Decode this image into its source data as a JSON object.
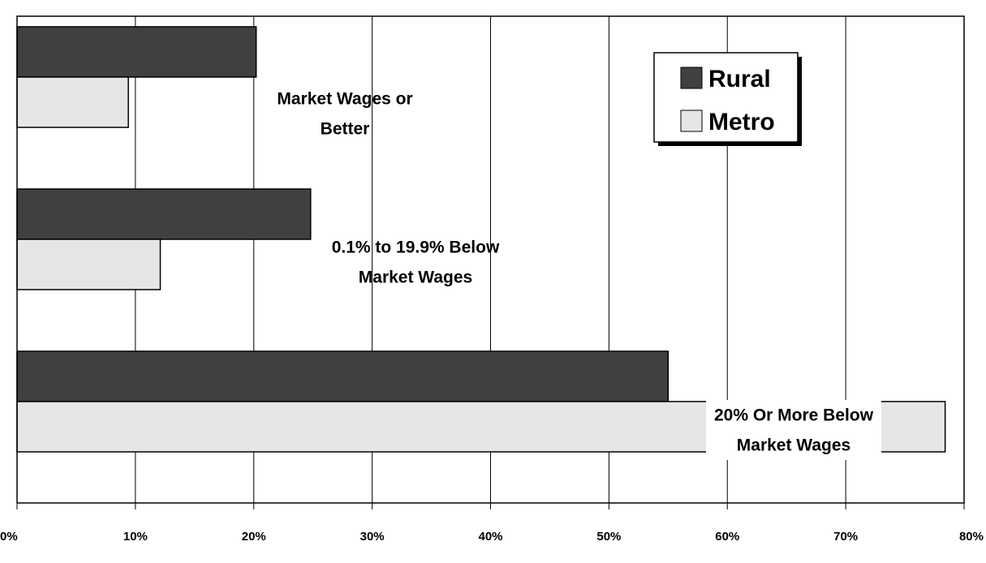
{
  "chart_data": {
    "type": "bar",
    "orientation": "horizontal",
    "categories": [
      "Market Wages or Better",
      "0.1% to 19.9% Below Market Wages",
      "20% Or More Below Market Wages"
    ],
    "series": [
      {
        "name": "Rural",
        "values": [
          20.2,
          24.8,
          55.0
        ],
        "color": "#404040"
      },
      {
        "name": "Metro",
        "values": [
          9.4,
          12.1,
          78.4
        ],
        "color": "#e6e6e6"
      }
    ],
    "xlim": [
      0,
      80
    ],
    "x_ticks": [
      "0%",
      "10%",
      "20%",
      "30%",
      "40%",
      "50%",
      "60%",
      "70%",
      "80%"
    ],
    "grid": "vertical",
    "legend_position": "top-right",
    "title": "",
    "xlabel": "",
    "ylabel": ""
  },
  "category_labels": [
    {
      "lines": [
        "Market Wages or",
        "Better"
      ]
    },
    {
      "lines": [
        "0.1% to 19.9% Below",
        "Market Wages"
      ]
    },
    {
      "lines": [
        "20% Or More Below",
        "Market Wages"
      ]
    }
  ],
  "legend": {
    "items": [
      "Rural",
      "Metro"
    ]
  }
}
